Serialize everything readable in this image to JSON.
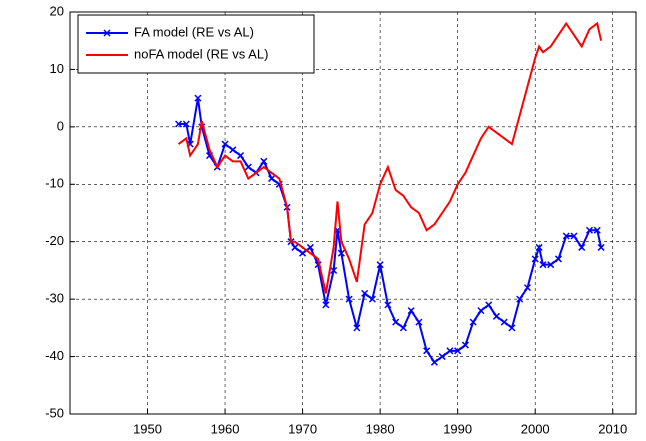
{
  "chart_data": {
    "type": "line",
    "x": [
      1954,
      1955,
      1955.5,
      1956.5,
      1957,
      1958,
      1959,
      1960,
      1961,
      1962,
      1963,
      1964,
      1965,
      1966,
      1967,
      1968,
      1968.5,
      1969,
      1970,
      1971,
      1972,
      1973,
      1974,
      1974.5,
      1975,
      1976,
      1977,
      1978,
      1979,
      1980,
      1981,
      1982,
      1983,
      1984,
      1985,
      1986,
      1987,
      1988,
      1989,
      1990,
      1991,
      1992,
      1993,
      1994,
      1995,
      1996,
      1997,
      1998,
      1999,
      2000,
      2000.5,
      2001,
      2002,
      2003,
      2004,
      2005,
      2006,
      2007,
      2008,
      2008.5
    ],
    "series": [
      {
        "name": "FA model (RE vs AL)",
        "color": "#0000ff",
        "marker": "x",
        "values": [
          0.5,
          0.5,
          -3,
          5,
          0,
          -5,
          -7,
          -3,
          -4,
          -5,
          -7,
          -8,
          -6,
          -9,
          -10,
          -14,
          -20,
          -21,
          -22,
          -21,
          -24,
          -31,
          -25,
          -18,
          -22,
          -30,
          -35,
          -29,
          -30,
          -24,
          -31,
          -34,
          -35,
          -32,
          -34,
          -39,
          -41,
          -40,
          -39,
          -39,
          -38,
          -34,
          -32,
          -31,
          -33,
          -34,
          -35,
          -30,
          -28,
          -23,
          -21,
          -24,
          -24,
          -23,
          -19,
          -19,
          -21,
          -18,
          -18,
          -21
        ]
      },
      {
        "name": "noFA model (RE vs AL)",
        "color": "#ff0000",
        "values": [
          -3,
          -2,
          -5,
          -3,
          1,
          -4,
          -7,
          -5,
          -6,
          -6,
          -9,
          -8,
          -7,
          -8,
          -9,
          -14,
          -20,
          -20,
          -21,
          -22,
          -23,
          -29,
          -21,
          -13,
          -20,
          -23,
          -27,
          -17,
          -15,
          -10,
          -7,
          -11,
          -12,
          -14,
          -15,
          -18,
          -17,
          -15,
          -13,
          -10,
          -8,
          -5,
          -2,
          0,
          -1,
          -2,
          -3,
          2,
          7,
          12,
          14,
          13,
          14,
          16,
          18,
          16,
          14,
          17,
          18,
          15
        ]
      }
    ],
    "xlim": [
      1940,
      2013
    ],
    "xticks": [
      1950,
      1960,
      1970,
      1980,
      1990,
      2000,
      2010
    ],
    "ylim": [
      -50,
      20
    ],
    "yticks": [
      -50,
      -40,
      -30,
      -20,
      -10,
      0,
      10,
      20
    ],
    "grid": true,
    "legend": "northwest"
  }
}
